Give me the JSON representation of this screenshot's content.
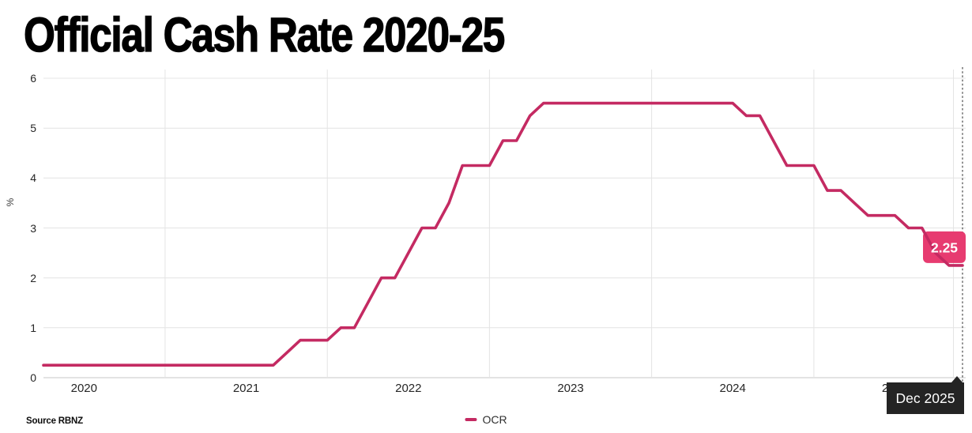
{
  "title": "Official Cash Rate 2020-25",
  "source": "Source RBNZ",
  "legend": {
    "label": "OCR"
  },
  "tooltips": {
    "value_label": "2.25",
    "date_label": "Dec 2025"
  },
  "colors": {
    "line": "#c42a62",
    "tooltip_pink": "#e73b70",
    "tooltip_dark": "#242424",
    "grid": "#e4e4e4",
    "baseline": "#c7c7c7",
    "tracker": "#4a4a4a",
    "axis_text": "#262626"
  },
  "chart_data": {
    "type": "line",
    "title": "Official Cash Rate 2020-25",
    "xlabel": "",
    "ylabel": "%",
    "ylim": [
      0,
      6
    ],
    "y_ticks": [
      0,
      1,
      2,
      3,
      4,
      5,
      6
    ],
    "x_tick_labels": [
      "2020",
      "2021",
      "2022",
      "2023",
      "2024",
      "2025"
    ],
    "grid": true,
    "legend_position": "bottom-center",
    "series": [
      {
        "name": "OCR",
        "points": [
          [
            "2020-04",
            0.25
          ],
          [
            "2020-05",
            0.25
          ],
          [
            "2020-06",
            0.25
          ],
          [
            "2020-07",
            0.25
          ],
          [
            "2020-08",
            0.25
          ],
          [
            "2020-09",
            0.25
          ],
          [
            "2020-10",
            0.25
          ],
          [
            "2020-11",
            0.25
          ],
          [
            "2020-12",
            0.25
          ],
          [
            "2021-01",
            0.25
          ],
          [
            "2021-02",
            0.25
          ],
          [
            "2021-03",
            0.25
          ],
          [
            "2021-04",
            0.25
          ],
          [
            "2021-05",
            0.25
          ],
          [
            "2021-06",
            0.25
          ],
          [
            "2021-07",
            0.25
          ],
          [
            "2021-08",
            0.25
          ],
          [
            "2021-09",
            0.25
          ],
          [
            "2021-10",
            0.5
          ],
          [
            "2021-11",
            0.75
          ],
          [
            "2021-12",
            0.75
          ],
          [
            "2022-01",
            0.75
          ],
          [
            "2022-02",
            1.0
          ],
          [
            "2022-03",
            1.0
          ],
          [
            "2022-04",
            1.5
          ],
          [
            "2022-05",
            2.0
          ],
          [
            "2022-06",
            2.0
          ],
          [
            "2022-07",
            2.5
          ],
          [
            "2022-08",
            3.0
          ],
          [
            "2022-09",
            3.0
          ],
          [
            "2022-10",
            3.5
          ],
          [
            "2022-11",
            4.25
          ],
          [
            "2022-12",
            4.25
          ],
          [
            "2023-01",
            4.25
          ],
          [
            "2023-02",
            4.75
          ],
          [
            "2023-03",
            4.75
          ],
          [
            "2023-04",
            5.25
          ],
          [
            "2023-05",
            5.5
          ],
          [
            "2023-06",
            5.5
          ],
          [
            "2023-07",
            5.5
          ],
          [
            "2023-08",
            5.5
          ],
          [
            "2023-09",
            5.5
          ],
          [
            "2023-10",
            5.5
          ],
          [
            "2023-11",
            5.5
          ],
          [
            "2023-12",
            5.5
          ],
          [
            "2024-01",
            5.5
          ],
          [
            "2024-02",
            5.5
          ],
          [
            "2024-03",
            5.5
          ],
          [
            "2024-04",
            5.5
          ],
          [
            "2024-05",
            5.5
          ],
          [
            "2024-06",
            5.5
          ],
          [
            "2024-07",
            5.5
          ],
          [
            "2024-08",
            5.25
          ],
          [
            "2024-09",
            5.25
          ],
          [
            "2024-10",
            4.75
          ],
          [
            "2024-11",
            4.25
          ],
          [
            "2024-12",
            4.25
          ],
          [
            "2025-01",
            4.25
          ],
          [
            "2025-02",
            3.75
          ],
          [
            "2025-03",
            3.75
          ],
          [
            "2025-04",
            3.5
          ],
          [
            "2025-05",
            3.25
          ],
          [
            "2025-06",
            3.25
          ],
          [
            "2025-07",
            3.25
          ],
          [
            "2025-08",
            3.0
          ],
          [
            "2025-09",
            3.0
          ],
          [
            "2025-10",
            2.5
          ],
          [
            "2025-11",
            2.25
          ],
          [
            "2025-12",
            2.25
          ]
        ]
      }
    ],
    "highlighted_point": {
      "date": "2025-12",
      "value": 2.25,
      "label": "Dec 2025"
    }
  }
}
